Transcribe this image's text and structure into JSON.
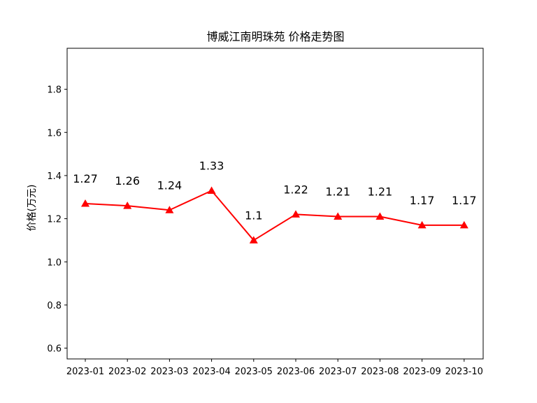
{
  "chart_data": {
    "type": "line",
    "title": "博威江南明珠苑 价格走势图",
    "xlabel": "",
    "ylabel": "价格(万元)",
    "categories": [
      "2023-01",
      "2023-02",
      "2023-03",
      "2023-04",
      "2023-05",
      "2023-06",
      "2023-07",
      "2023-08",
      "2023-09",
      "2023-10"
    ],
    "series": [
      {
        "values": [
          1.27,
          1.26,
          1.24,
          1.33,
          1.1,
          1.22,
          1.21,
          1.21,
          1.17,
          1.17
        ]
      }
    ],
    "data_labels": [
      "1.27",
      "1.26",
      "1.24",
      "1.33",
      "1.1",
      "1.22",
      "1.21",
      "1.21",
      "1.17",
      "1.17"
    ],
    "yticks": [
      "0.6",
      "0.8",
      "1.0",
      "1.2",
      "1.4",
      "1.6",
      "1.8"
    ],
    "ytick_values": [
      0.6,
      0.8,
      1.0,
      1.2,
      1.4,
      1.6,
      1.8
    ],
    "ylim": [
      0.55,
      1.99
    ],
    "grid": false,
    "marker": "triangle",
    "line_color": "#ff0000"
  }
}
